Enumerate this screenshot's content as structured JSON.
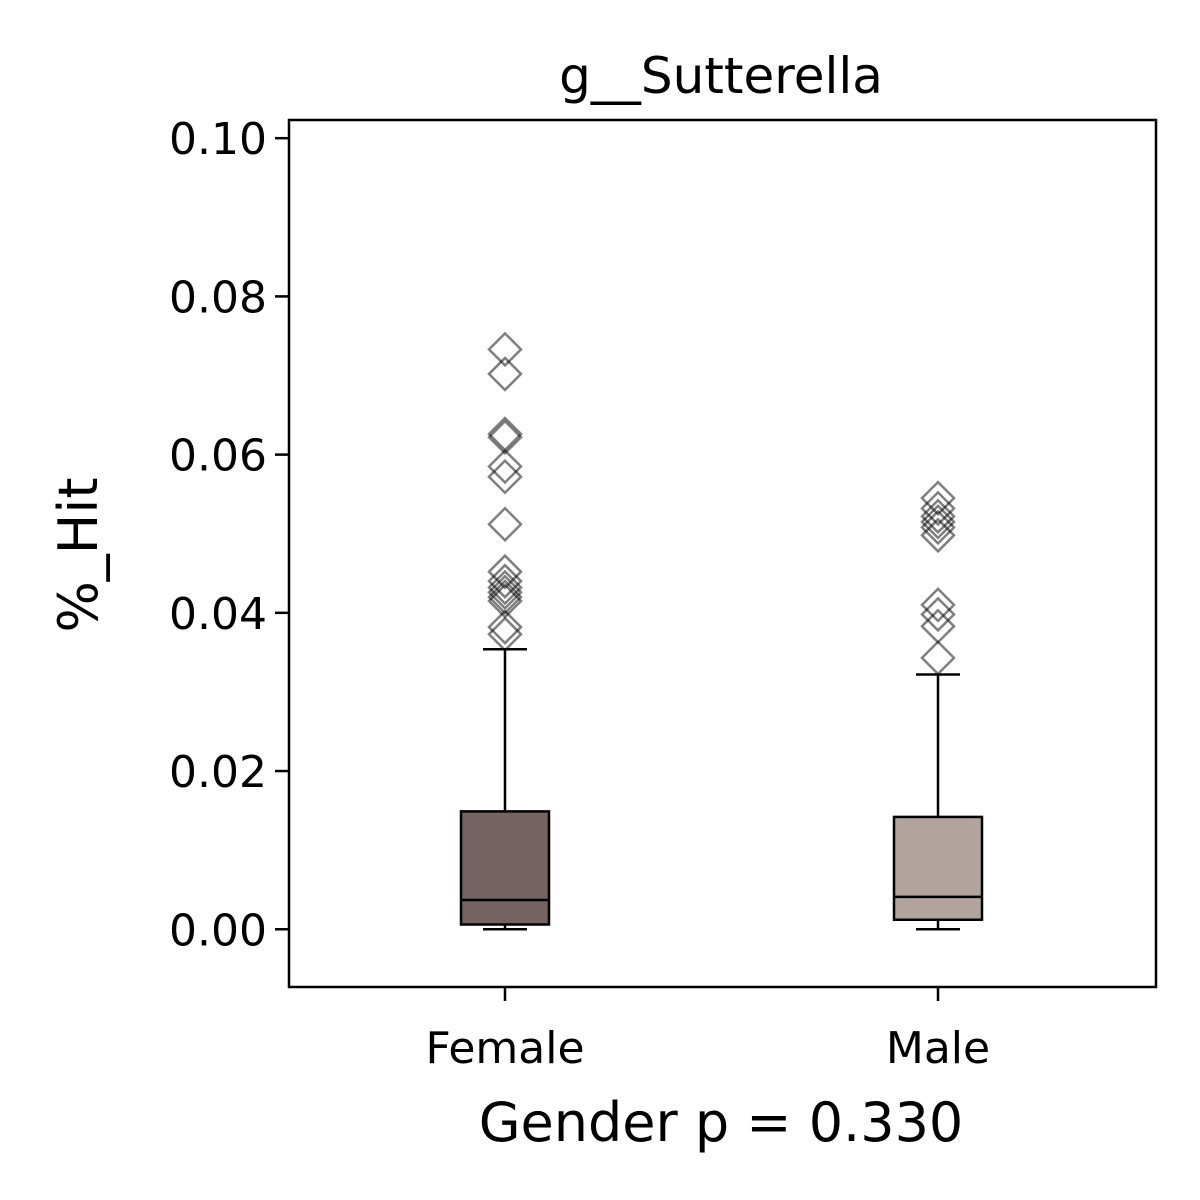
{
  "chart_data": {
    "type": "box",
    "title": "g__Sutterella",
    "xlabel": "Gender p = 0.330",
    "ylabel": "%_Hit",
    "ylim": [
      -0.0073,
      0.1023
    ],
    "yticks": [
      "0.00",
      "0.02",
      "0.04",
      "0.06",
      "0.08",
      "0.10"
    ],
    "grid": false,
    "categories": [
      "Female",
      "Male"
    ],
    "boxes": [
      {
        "category": "Female",
        "color": "#756361",
        "whisker_low": 0.0,
        "q1": 0.0006,
        "median": 0.0037,
        "q3": 0.0149,
        "whisker_high": 0.0354,
        "outliers": [
          0.0733,
          0.0702,
          0.0626,
          0.0622,
          0.0585,
          0.0572,
          0.0512,
          0.0452,
          0.044,
          0.0432,
          0.0426,
          0.042,
          0.0415,
          0.0382,
          0.0373
        ]
      },
      {
        "category": "Male",
        "color": "#b0a49c",
        "whisker_low": 0.0,
        "q1": 0.0012,
        "median": 0.0041,
        "q3": 0.0142,
        "whisker_high": 0.0322,
        "outliers": [
          0.0545,
          0.0532,
          0.0522,
          0.0515,
          0.0508,
          0.0498,
          0.041,
          0.0398,
          0.0383,
          0.0343
        ]
      }
    ]
  }
}
